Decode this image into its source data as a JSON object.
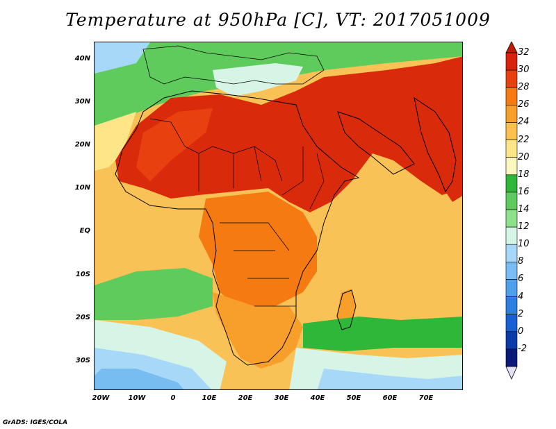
{
  "title": "Temperature at 950hPa [C], VT: 2017051009",
  "footer": "GrADS: IGES/COLA",
  "axes": {
    "lat_ticks": [
      "40N",
      "30N",
      "20N",
      "10N",
      "EQ",
      "10S",
      "20S",
      "30S"
    ],
    "lon_ticks": [
      "20W",
      "10W",
      "0",
      "10E",
      "20E",
      "30E",
      "40E",
      "50E",
      "60E",
      "70E"
    ]
  },
  "colorbar": {
    "labels": [
      "32",
      "30",
      "28",
      "26",
      "24",
      "22",
      "20",
      "18",
      "16",
      "14",
      "12",
      "10",
      "8",
      "6",
      "4",
      "2",
      "0",
      "-2"
    ],
    "colors": [
      "#d7220c",
      "#e8410f",
      "#f57a11",
      "#f89e2a",
      "#f9c04e",
      "#fde588",
      "#fdf8c0",
      "#2fb73a",
      "#5ecb5c",
      "#8fe08a",
      "#d7f5e6",
      "#a8d8f8",
      "#78bdf2",
      "#4fa0ec",
      "#2d80e2",
      "#1660d4",
      "#0a3ba8",
      "#0b1878"
    ],
    "over_color": "#c11a06",
    "under_color": "#e6e0f7"
  },
  "map": {
    "ocean_color": "#f9c257",
    "land_hot_color": "#d92a0c"
  }
}
